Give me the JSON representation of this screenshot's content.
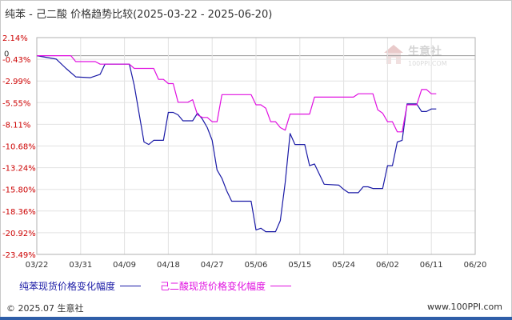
{
  "title": "纯苯 - 己二酸 价格趋势比较(2025-03-22 - 2025-06-20)",
  "watermark": {
    "brand": "生意社",
    "url": "100PPI.COM"
  },
  "footer": {
    "copyright": "© 2025.07 生意社",
    "site": "www.100PPI.com"
  },
  "chart_data": {
    "type": "line",
    "y_ticks": [
      "2.14%",
      "-0.43%",
      "-2.99%",
      "-5.55%",
      "-8.11%",
      "-10.68%",
      "-13.24%",
      "-15.80%",
      "-18.36%",
      "-20.92%",
      "-23.49%"
    ],
    "y_zero_label": "0",
    "x_ticks": [
      "03/22",
      "03/31",
      "04/09",
      "04/18",
      "04/27",
      "05/06",
      "05/15",
      "05/24",
      "06/02",
      "06/11",
      "06/20"
    ],
    "ylim": [
      -23.49,
      2.14
    ],
    "grid": true,
    "legend_position": "bottom",
    "series": [
      {
        "name": "纯苯现货价格变化幅度",
        "color": "#1a1aa6",
        "points": [
          [
            0,
            0
          ],
          [
            4,
            -0.4
          ],
          [
            6,
            -1.5
          ],
          [
            8,
            -2.5
          ],
          [
            11,
            -2.6
          ],
          [
            13,
            -2.2
          ],
          [
            14,
            -1.0
          ],
          [
            17,
            -1.0
          ],
          [
            19,
            -1.0
          ],
          [
            20,
            -3.5
          ],
          [
            22,
            -10.2
          ],
          [
            23,
            -10.5
          ],
          [
            24,
            -10.0
          ],
          [
            26,
            -10.0
          ],
          [
            27,
            -6.7
          ],
          [
            28,
            -6.7
          ],
          [
            29,
            -7.0
          ],
          [
            30,
            -7.7
          ],
          [
            32,
            -7.7
          ],
          [
            33,
            -6.8
          ],
          [
            34,
            -7.5
          ],
          [
            35,
            -8.5
          ],
          [
            36,
            -10.0
          ],
          [
            37,
            -13.5
          ],
          [
            38,
            -14.5
          ],
          [
            39,
            -16.0
          ],
          [
            40,
            -17.2
          ],
          [
            44,
            -17.2
          ],
          [
            45,
            -20.6
          ],
          [
            46,
            -20.4
          ],
          [
            47,
            -20.8
          ],
          [
            49,
            -20.8
          ],
          [
            50,
            -19.5
          ],
          [
            51,
            -15.0
          ],
          [
            52,
            -9.2
          ],
          [
            53,
            -10.5
          ],
          [
            55,
            -10.5
          ],
          [
            56,
            -13.0
          ],
          [
            57,
            -12.8
          ],
          [
            58,
            -14.0
          ],
          [
            59,
            -15.2
          ],
          [
            62,
            -15.3
          ],
          [
            63,
            -15.8
          ],
          [
            64,
            -16.2
          ],
          [
            66,
            -16.2
          ],
          [
            67,
            -15.5
          ],
          [
            68,
            -15.5
          ],
          [
            69,
            -15.7
          ],
          [
            71,
            -15.7
          ],
          [
            72,
            -13.0
          ],
          [
            73,
            -13.0
          ],
          [
            74,
            -10.2
          ],
          [
            75,
            -10.0
          ],
          [
            76,
            -5.7
          ],
          [
            78,
            -5.7
          ],
          [
            79,
            -6.6
          ],
          [
            80,
            -6.6
          ],
          [
            81,
            -6.3
          ],
          [
            82,
            -6.3
          ]
        ]
      },
      {
        "name": "己二酸现货价格变化幅度",
        "color": "#e010e0",
        "points": [
          [
            0,
            0
          ],
          [
            7,
            0
          ],
          [
            8,
            -0.7
          ],
          [
            12,
            -0.7
          ],
          [
            13,
            -1.0
          ],
          [
            19,
            -1.0
          ],
          [
            20,
            -1.5
          ],
          [
            24,
            -1.5
          ],
          [
            25,
            -2.8
          ],
          [
            26,
            -2.8
          ],
          [
            27,
            -3.3
          ],
          [
            28,
            -3.3
          ],
          [
            29,
            -5.5
          ],
          [
            31,
            -5.5
          ],
          [
            32,
            -5.2
          ],
          [
            33,
            -7.0
          ],
          [
            34,
            -7.3
          ],
          [
            35,
            -7.3
          ],
          [
            36,
            -7.8
          ],
          [
            37,
            -7.8
          ],
          [
            38,
            -4.6
          ],
          [
            44,
            -4.6
          ],
          [
            45,
            -5.8
          ],
          [
            46,
            -5.8
          ],
          [
            47,
            -6.2
          ],
          [
            48,
            -7.8
          ],
          [
            49,
            -7.8
          ],
          [
            50,
            -8.5
          ],
          [
            51,
            -8.8
          ],
          [
            52,
            -6.9
          ],
          [
            56,
            -6.9
          ],
          [
            57,
            -4.9
          ],
          [
            65,
            -4.9
          ],
          [
            66,
            -4.5
          ],
          [
            69,
            -4.5
          ],
          [
            70,
            -6.4
          ],
          [
            71,
            -6.8
          ],
          [
            72,
            -7.8
          ],
          [
            73,
            -7.8
          ],
          [
            74,
            -9.0
          ],
          [
            75,
            -9.0
          ],
          [
            76,
            -5.8
          ],
          [
            78,
            -5.8
          ],
          [
            79,
            -4.0
          ],
          [
            80,
            -4.0
          ],
          [
            81,
            -4.5
          ],
          [
            82,
            -4.5
          ]
        ]
      }
    ]
  }
}
